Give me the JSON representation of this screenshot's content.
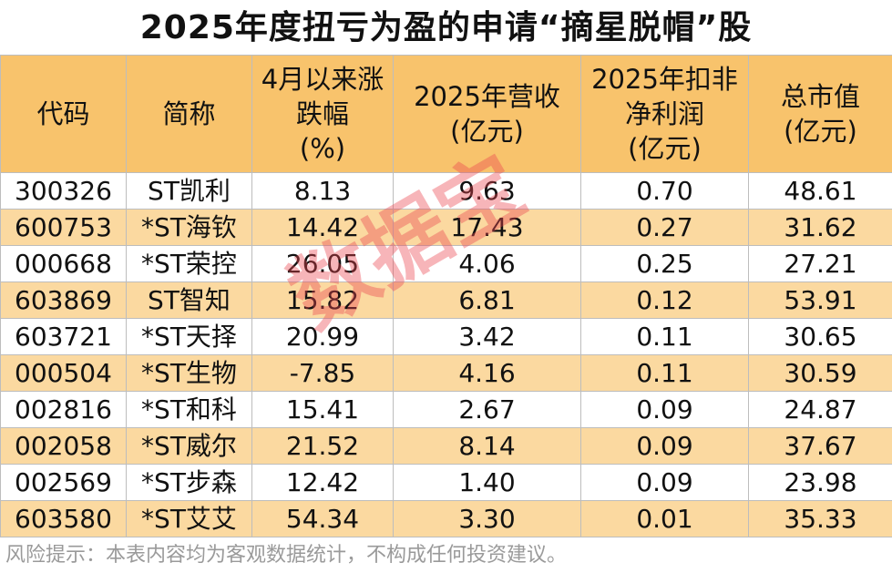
{
  "title": "2025年度扭亏为盈的申请“摘星脱帽”股",
  "columns": [
    "代码",
    "简称",
    "4月以来涨\n跌幅\n(%)",
    "2025年营收\n(亿元)",
    "2025年扣非\n净利润\n(亿元)",
    "总市值\n(亿元)"
  ],
  "rows": [
    [
      "300326",
      "ST凯利",
      "8.13",
      "9.63",
      "0.70",
      "48.61"
    ],
    [
      "600753",
      "*ST海钦",
      "14.42",
      "17.43",
      "0.27",
      "31.62"
    ],
    [
      "000668",
      "*ST荣控",
      "26.05",
      "4.06",
      "0.25",
      "27.21"
    ],
    [
      "603869",
      "ST智知",
      "15.82",
      "6.81",
      "0.12",
      "53.91"
    ],
    [
      "603721",
      "*ST天择",
      "20.99",
      "3.42",
      "0.11",
      "30.65"
    ],
    [
      "000504",
      "*ST生物",
      "-7.85",
      "4.16",
      "0.11",
      "30.59"
    ],
    [
      "002816",
      "*ST和科",
      "15.41",
      "2.67",
      "0.09",
      "24.87"
    ],
    [
      "002058",
      "*ST威尔",
      "21.52",
      "8.14",
      "0.09",
      "37.67"
    ],
    [
      "002569",
      "*ST步森",
      "12.42",
      "1.40",
      "0.09",
      "23.98"
    ],
    [
      "603580",
      "*ST艾艾",
      "54.34",
      "3.30",
      "0.01",
      "35.33"
    ]
  ],
  "footer": "风险提示：本表内容均为客观数据统计，不构成任何投资建议。",
  "watermark": "数据宝",
  "colors": {
    "header_bg": "#f8c36c",
    "stripe_bg": "#fbd9a0",
    "watermark": "#eb4650"
  }
}
